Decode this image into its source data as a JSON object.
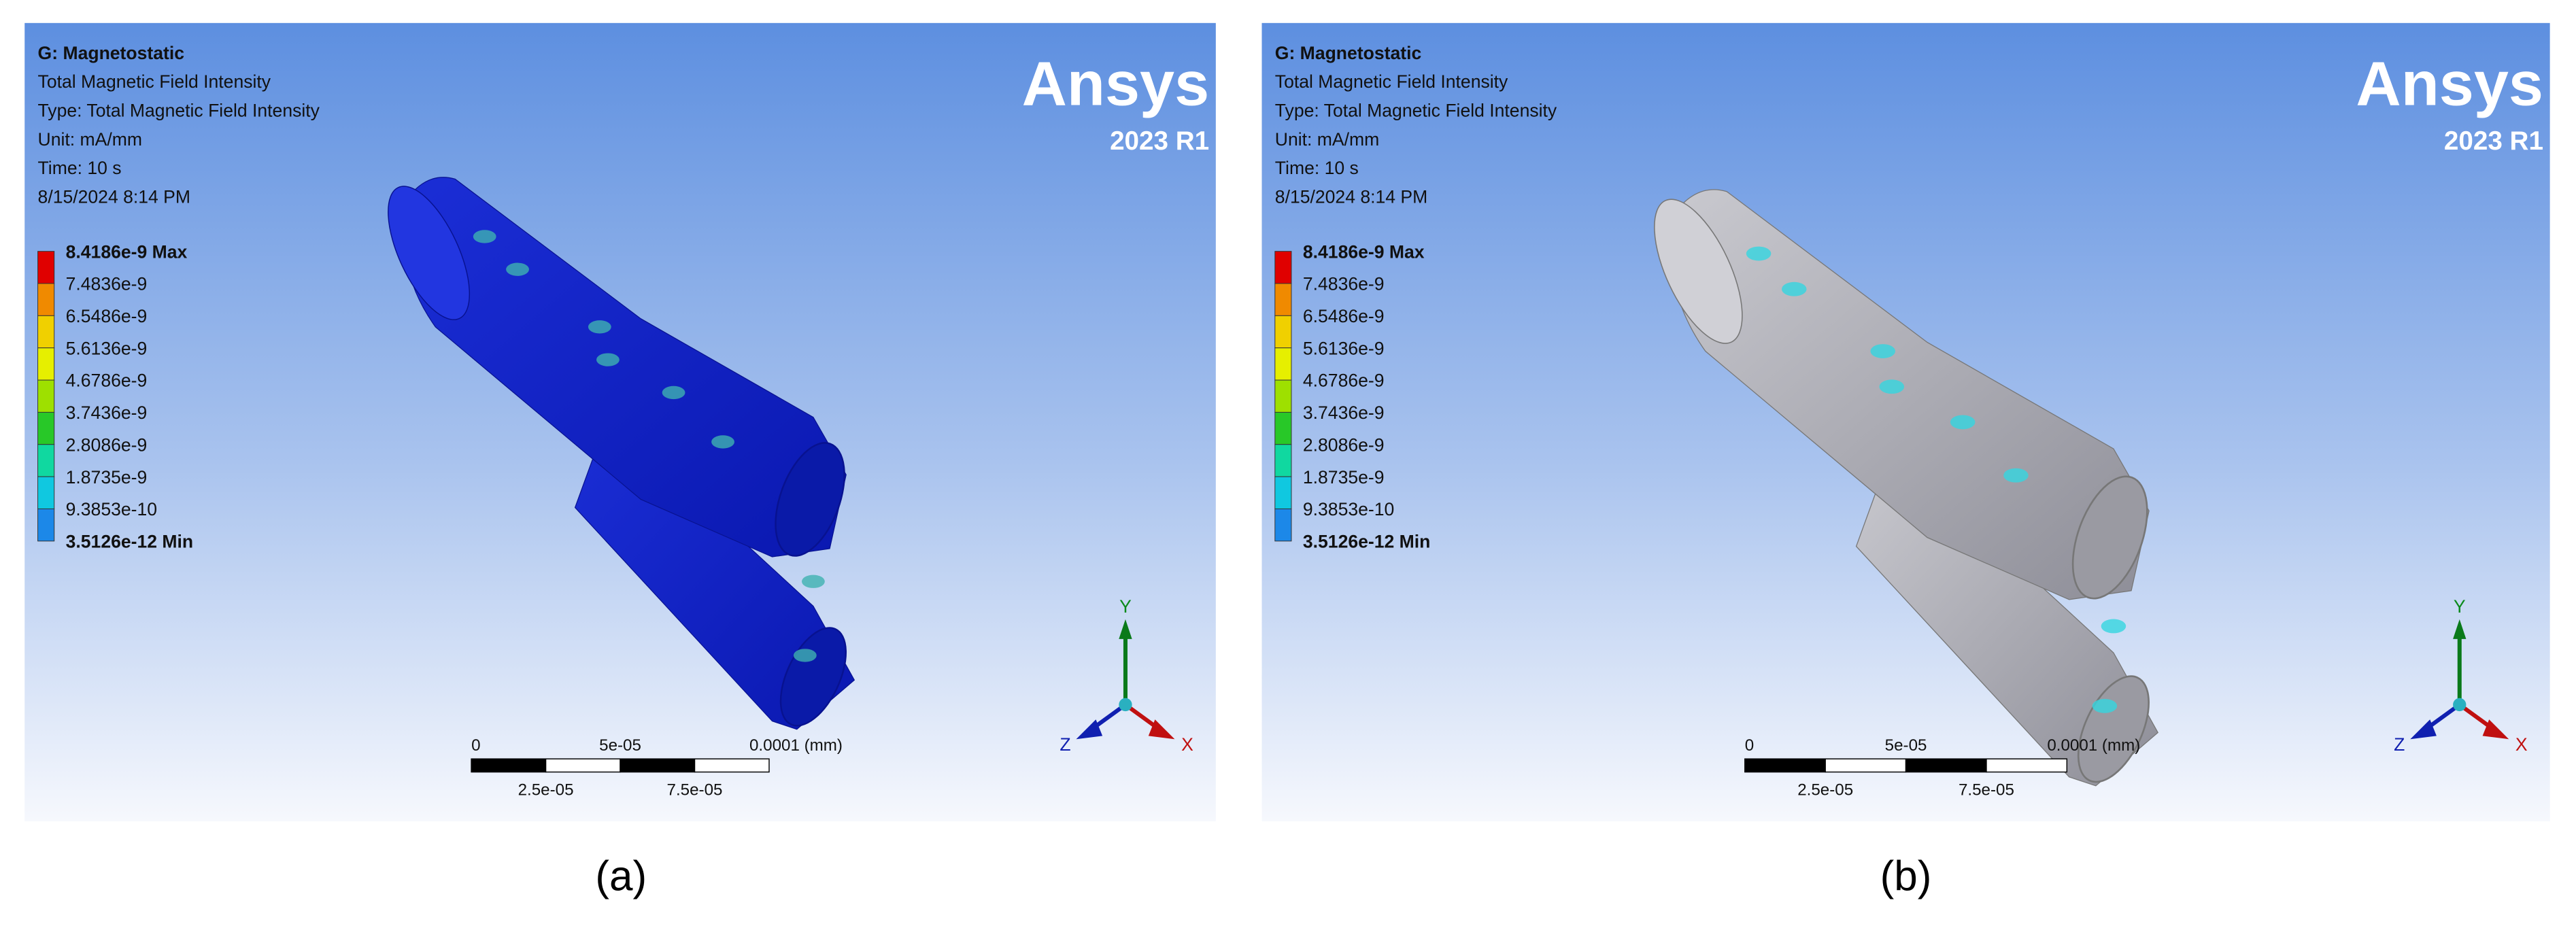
{
  "panels": [
    {
      "caption": "(a)",
      "header": [
        "G: Magnetostatic",
        "Total Magnetic Field Intensity",
        "Type: Total Magnetic Field Intensity",
        "Unit: mA/mm",
        "Time: 10 s",
        "8/15/2024 8:14 PM"
      ],
      "legend": [
        "8.4186e-9 Max",
        "7.4836e-9",
        "6.5486e-9",
        "5.6136e-9",
        "4.6786e-9",
        "3.7436e-9",
        "2.8086e-9",
        "1.8735e-9",
        "9.3853e-10",
        "3.5126e-12 Min"
      ],
      "brand": {
        "name": "Ansys",
        "version": "2023 R1"
      },
      "scale_bar": {
        "top": [
          "0",
          "5e-05",
          "0.0001 (mm)"
        ],
        "bottom": [
          "2.5e-05",
          "7.5e-05"
        ]
      },
      "triad": {
        "x": "X",
        "y": "Y",
        "z": "Z"
      }
    },
    {
      "caption": "(b)",
      "header": [
        "G: Magnetostatic",
        "Total Magnetic Field Intensity",
        "Type: Total Magnetic Field Intensity",
        "Unit: mA/mm",
        "Time: 10 s",
        "8/15/2024 8:14 PM"
      ],
      "legend": [
        "8.4186e-9 Max",
        "7.4836e-9",
        "6.5486e-9",
        "5.6136e-9",
        "4.6786e-9",
        "3.7436e-9",
        "2.8086e-9",
        "1.8735e-9",
        "9.3853e-10",
        "3.5126e-12 Min"
      ],
      "brand": {
        "name": "Ansys",
        "version": "2023 R1"
      },
      "scale_bar": {
        "top": [
          "0",
          "5e-05",
          "0.0001 (mm)"
        ],
        "bottom": [
          "2.5e-05",
          "7.5e-05"
        ]
      },
      "triad": {
        "x": "X",
        "y": "Y",
        "z": "Z"
      }
    }
  ]
}
